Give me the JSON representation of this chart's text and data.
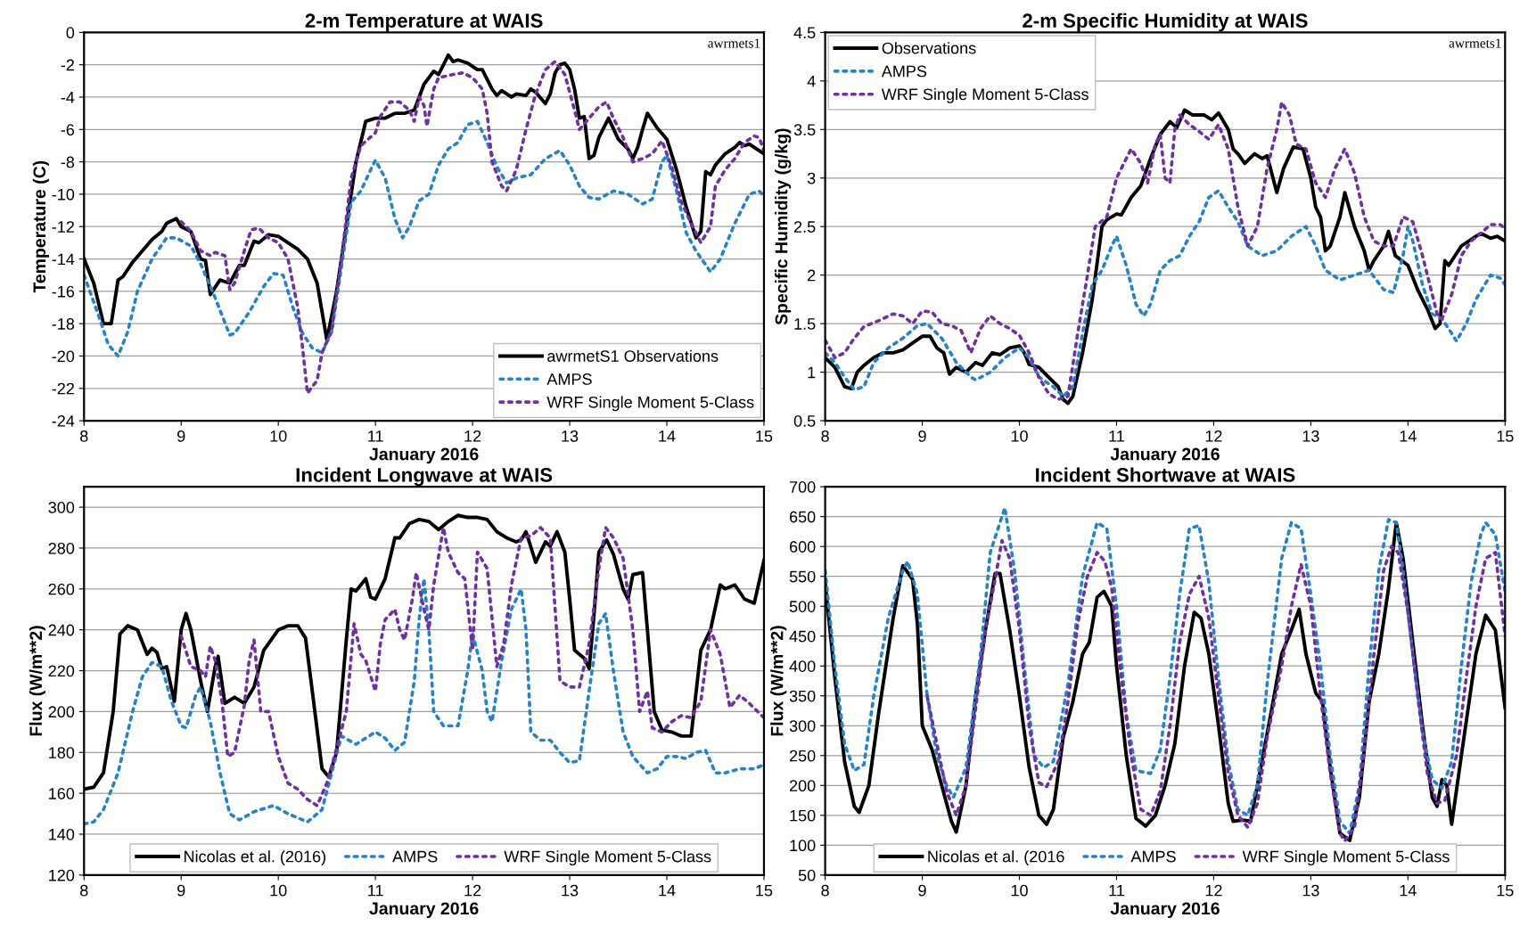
{
  "chart_data": [
    {
      "type": "line",
      "title": "2-m Temperature at WAIS",
      "xlabel": "January 2016",
      "ylabel": "Temperature (C)",
      "annotations": [
        "awrmets1"
      ],
      "xlim": [
        8,
        15
      ],
      "xticks": [
        8,
        9,
        10,
        11,
        12,
        13,
        14,
        15
      ],
      "ylim": [
        -24,
        0
      ],
      "yticks": [
        -24,
        -22,
        -20,
        -18,
        -16,
        -14,
        -12,
        -10,
        -8,
        -6,
        -4,
        -2,
        0
      ],
      "grid": "y",
      "legend": "bottom right",
      "marker": "none",
      "series": [
        {
          "name": "awrmetS1 Observations",
          "color": "#000000",
          "line_style": "solid",
          "x": [
            8.0,
            8.1,
            8.2,
            8.28,
            8.35,
            8.4,
            8.5,
            8.6,
            8.7,
            8.8,
            8.85,
            8.95,
            9.0,
            9.1,
            9.2,
            9.25,
            9.3,
            9.4,
            9.5,
            9.6,
            9.65,
            9.75,
            9.8,
            9.9,
            10.0,
            10.1,
            10.2,
            10.3,
            10.4,
            10.5,
            10.6,
            10.7,
            10.75,
            10.8,
            10.9,
            11.0,
            11.1,
            11.2,
            11.3,
            11.4,
            11.45,
            11.5,
            11.6,
            11.65,
            11.75,
            11.8,
            11.85,
            11.95,
            12.05,
            12.1,
            12.2,
            12.25,
            12.3,
            12.4,
            12.45,
            12.55,
            12.6,
            12.65,
            12.75,
            12.8,
            12.85,
            12.9,
            12.95,
            13.0,
            13.05,
            13.1,
            13.15,
            13.2,
            13.25,
            13.3,
            13.4,
            13.5,
            13.6,
            13.65,
            13.7,
            13.75,
            13.8,
            13.9,
            14.0,
            14.1,
            14.2,
            14.3,
            14.35,
            14.4,
            14.45,
            14.5,
            14.6,
            14.7,
            14.75,
            14.8,
            14.85,
            14.9,
            15.0
          ],
          "values": [
            -14,
            -15.5,
            -18,
            -18,
            -15.3,
            -15.1,
            -14.2,
            -13.5,
            -12.8,
            -12.3,
            -11.8,
            -11.5,
            -12,
            -12.3,
            -14,
            -14.1,
            -16.2,
            -15.3,
            -15.5,
            -14.4,
            -14.4,
            -12.9,
            -13,
            -12.5,
            -12.6,
            -13,
            -13.4,
            -14,
            -15.5,
            -19,
            -16,
            -12,
            -10,
            -8,
            -5.5,
            -5.3,
            -5.3,
            -5.0,
            -5.0,
            -4.8,
            -4,
            -3.2,
            -2.4,
            -2.6,
            -1.4,
            -1.8,
            -1.7,
            -1.9,
            -2.3,
            -2.3,
            -3.5,
            -3.9,
            -3.6,
            -4.0,
            -3.8,
            -3.9,
            -3.5,
            -3.7,
            -4.4,
            -3.8,
            -2.5,
            -2.0,
            -1.9,
            -2.3,
            -3.5,
            -5.3,
            -5.2,
            -7.8,
            -7.6,
            -6.5,
            -5.3,
            -6.6,
            -7.2,
            -7.8,
            -7.1,
            -6.0,
            -5.0,
            -5.9,
            -6.6,
            -8.5,
            -10.8,
            -12.7,
            -12.3,
            -8.6,
            -8.8,
            -8.2,
            -7.5,
            -7.1,
            -6.8,
            -7.0,
            -6.9,
            -7.1,
            -7.5
          ]
        },
        {
          "name": "AMPS",
          "color": "#2683c6",
          "line_style": "dotted",
          "x": [
            8.0,
            8.15,
            8.25,
            8.35,
            8.45,
            8.55,
            8.7,
            8.85,
            8.95,
            9.1,
            9.2,
            9.35,
            9.5,
            9.55,
            9.7,
            9.85,
            9.95,
            10.05,
            10.15,
            10.25,
            10.35,
            10.45,
            10.55,
            10.65,
            10.75,
            10.85,
            10.95,
            11.0,
            11.1,
            11.2,
            11.28,
            11.35,
            11.45,
            11.55,
            11.65,
            11.75,
            11.85,
            11.95,
            12.05,
            12.15,
            12.25,
            12.35,
            12.45,
            12.6,
            12.75,
            12.9,
            13.0,
            13.1,
            13.2,
            13.3,
            13.45,
            13.6,
            13.75,
            13.85,
            13.95,
            14.0,
            14.1,
            14.2,
            14.3,
            14.45,
            14.55,
            14.7,
            14.85,
            14.95,
            15.0
          ],
          "values": [
            -15,
            -17.5,
            -19.3,
            -20,
            -18.5,
            -16,
            -14,
            -12.7,
            -12.7,
            -13.2,
            -14.3,
            -16.4,
            -18.7,
            -18.6,
            -17.3,
            -15.7,
            -14.9,
            -15,
            -17,
            -18.6,
            -19.5,
            -19.8,
            -18.5,
            -14.5,
            -10.5,
            -9.8,
            -8.5,
            -7.9,
            -9.0,
            -11.5,
            -12.7,
            -12.0,
            -10.4,
            -10.0,
            -8.2,
            -7.2,
            -6.8,
            -5.7,
            -5.5,
            -6.8,
            -8.3,
            -9.3,
            -9.0,
            -8.8,
            -7.8,
            -7.3,
            -8.2,
            -9.5,
            -10.2,
            -10.3,
            -9.8,
            -10.0,
            -10.6,
            -10.3,
            -8.0,
            -7.6,
            -9.8,
            -12.4,
            -13.5,
            -14.8,
            -14.0,
            -11.8,
            -10.0,
            -9.8,
            -10.1
          ]
        },
        {
          "name": "WRF Single Moment 5-Class",
          "color": "#7030a0",
          "line_style": "dotted",
          "x": [
            9.0,
            9.1,
            9.2,
            9.3,
            9.35,
            9.45,
            9.5,
            9.55,
            9.65,
            9.72,
            9.8,
            9.9,
            10.0,
            10.1,
            10.2,
            10.25,
            10.3,
            10.4,
            10.45,
            10.55,
            10.65,
            10.75,
            10.85,
            11.0,
            11.05,
            11.15,
            11.25,
            11.35,
            11.4,
            11.45,
            11.5,
            11.53,
            11.6,
            11.65,
            11.8,
            11.9,
            12.0,
            12.1,
            12.15,
            12.2,
            12.3,
            12.35,
            12.45,
            12.55,
            12.65,
            12.75,
            12.85,
            12.95,
            13.05,
            13.1,
            13.2,
            13.3,
            13.38,
            13.45,
            13.55,
            13.65,
            13.75,
            13.85,
            13.95,
            14.05,
            14.15,
            14.25,
            14.35,
            14.45,
            14.5,
            14.6,
            14.7,
            14.8,
            14.9,
            14.95,
            15.0
          ],
          "values": [
            -11.7,
            -12.3,
            -13.5,
            -13.8,
            -13.6,
            -13.8,
            -15.9,
            -15.5,
            -13.5,
            -12.2,
            -12.1,
            -12.7,
            -13.0,
            -14.0,
            -17,
            -19.5,
            -22.3,
            -21.5,
            -19.8,
            -18.4,
            -14,
            -9,
            -7,
            -6.2,
            -5.2,
            -4.3,
            -4.3,
            -4.8,
            -5.5,
            -4.0,
            -4.5,
            -5.8,
            -3.5,
            -2.8,
            -2.6,
            -2.5,
            -2.8,
            -3.5,
            -5.0,
            -8,
            -9.5,
            -9.8,
            -8.5,
            -6.0,
            -3.8,
            -2.3,
            -1.8,
            -2.6,
            -4.8,
            -6.0,
            -5.3,
            -4.6,
            -4.3,
            -5.3,
            -6.5,
            -8.0,
            -7.8,
            -7.5,
            -6.7,
            -8.3,
            -10.5,
            -11.8,
            -13.0,
            -12.0,
            -9.5,
            -8.5,
            -7.8,
            -6.8,
            -6.4,
            -6.5,
            -7.3
          ]
        }
      ]
    },
    {
      "type": "line",
      "title": "2-m Specific Humidity at WAIS",
      "xlabel": "January 2016",
      "ylabel": "Specific Humidity (g/kg)",
      "annotations": [
        "awrmets1"
      ],
      "xlim": [
        8,
        15
      ],
      "xticks": [
        8,
        9,
        10,
        11,
        12,
        13,
        14,
        15
      ],
      "ylim": [
        0.5,
        4.5
      ],
      "yticks": [
        0.5,
        1,
        1.5,
        2,
        2.5,
        3,
        3.5,
        4,
        4.5
      ],
      "grid": "y",
      "legend": "top left",
      "marker": "none",
      "series": [
        {
          "name": "Observations",
          "color": "#000000",
          "line_style": "solid",
          "x": [
            8.0,
            8.1,
            8.2,
            8.27,
            8.33,
            8.4,
            8.5,
            8.6,
            8.7,
            8.8,
            8.9,
            9.0,
            9.08,
            9.15,
            9.22,
            9.28,
            9.35,
            9.45,
            9.55,
            9.62,
            9.72,
            9.8,
            9.9,
            10.0,
            10.05,
            10.1,
            10.2,
            10.3,
            10.4,
            10.45,
            10.5,
            10.55,
            10.65,
            10.75,
            10.85,
            10.9,
            11.0,
            11.05,
            11.15,
            11.25,
            11.35,
            11.45,
            11.55,
            11.62,
            11.7,
            11.78,
            11.9,
            11.98,
            12.05,
            12.15,
            12.2,
            12.25,
            12.32,
            12.42,
            12.5,
            12.55,
            12.65,
            12.72,
            12.82,
            12.92,
            13.0,
            13.05,
            13.1,
            13.15,
            13.2,
            13.3,
            13.35,
            13.45,
            13.55,
            13.6,
            13.65,
            13.75,
            13.8,
            13.87,
            14.0,
            14.1,
            14.2,
            14.28,
            14.33,
            14.38,
            14.42,
            14.55,
            14.7,
            14.75,
            14.85,
            14.92,
            15.0
          ],
          "values": [
            1.15,
            1.05,
            0.85,
            0.83,
            1.0,
            1.07,
            1.15,
            1.2,
            1.2,
            1.23,
            1.3,
            1.37,
            1.37,
            1.25,
            1.2,
            0.98,
            1.05,
            1.0,
            1.1,
            1.07,
            1.2,
            1.18,
            1.25,
            1.27,
            1.2,
            1.08,
            1.05,
            0.95,
            0.85,
            0.72,
            0.68,
            0.75,
            1.2,
            1.75,
            2.5,
            2.57,
            2.63,
            2.62,
            2.8,
            2.92,
            3.2,
            3.45,
            3.58,
            3.52,
            3.7,
            3.65,
            3.65,
            3.6,
            3.67,
            3.5,
            3.3,
            3.25,
            3.15,
            3.25,
            3.2,
            3.23,
            2.85,
            3.1,
            3.32,
            3.3,
            3.0,
            2.7,
            2.6,
            2.25,
            2.3,
            2.6,
            2.85,
            2.5,
            2.25,
            2.05,
            2.15,
            2.3,
            2.45,
            2.2,
            2.1,
            1.85,
            1.65,
            1.45,
            1.5,
            2.15,
            2.1,
            2.3,
            2.4,
            2.43,
            2.38,
            2.4,
            2.35
          ]
        },
        {
          "name": "AMPS",
          "color": "#2683c6",
          "line_style": "dotted",
          "x": [
            8.0,
            8.1,
            8.2,
            8.3,
            8.4,
            8.5,
            8.65,
            8.8,
            8.95,
            9.05,
            9.2,
            9.35,
            9.5,
            9.55,
            9.7,
            9.85,
            10.0,
            10.1,
            10.2,
            10.35,
            10.45,
            10.55,
            10.65,
            10.75,
            10.85,
            10.95,
            11.0,
            11.1,
            11.2,
            11.28,
            11.35,
            11.45,
            11.55,
            11.65,
            11.75,
            11.85,
            11.95,
            12.05,
            12.15,
            12.25,
            12.35,
            12.5,
            12.65,
            12.8,
            12.95,
            13.05,
            13.15,
            13.3,
            13.45,
            13.6,
            13.75,
            13.85,
            13.95,
            14.0,
            14.05,
            14.15,
            14.25,
            14.35,
            14.45,
            14.5,
            14.6,
            14.7,
            14.85,
            14.95,
            15.0
          ],
          "values": [
            1.2,
            1.1,
            0.95,
            0.82,
            0.85,
            1.1,
            1.25,
            1.35,
            1.48,
            1.5,
            1.35,
            1.1,
            0.95,
            0.92,
            1.0,
            1.15,
            1.25,
            1.15,
            0.95,
            0.85,
            0.75,
            0.85,
            1.4,
            1.9,
            2.05,
            2.3,
            2.4,
            2.1,
            1.7,
            1.58,
            1.7,
            2.05,
            2.15,
            2.2,
            2.4,
            2.55,
            2.8,
            2.87,
            2.7,
            2.55,
            2.3,
            2.2,
            2.25,
            2.4,
            2.5,
            2.3,
            2.05,
            1.95,
            2.0,
            2.05,
            1.85,
            1.82,
            2.2,
            2.5,
            2.35,
            1.9,
            1.6,
            1.55,
            1.4,
            1.32,
            1.5,
            1.75,
            2.0,
            1.97,
            1.9
          ]
        },
        {
          "name": "WRF Single Moment 5-Class",
          "color": "#7030a0",
          "line_style": "dotted",
          "x": [
            8.0,
            8.1,
            8.2,
            8.3,
            8.4,
            8.55,
            8.7,
            8.8,
            8.9,
            9.0,
            9.1,
            9.2,
            9.3,
            9.4,
            9.5,
            9.6,
            9.7,
            9.8,
            9.9,
            10.0,
            10.1,
            10.2,
            10.3,
            10.4,
            10.5,
            10.6,
            10.7,
            10.78,
            10.9,
            11.0,
            11.1,
            11.15,
            11.25,
            11.32,
            11.4,
            11.45,
            11.5,
            11.55,
            11.6,
            11.65,
            11.75,
            11.85,
            11.95,
            12.05,
            12.15,
            12.25,
            12.35,
            12.45,
            12.55,
            12.65,
            12.7,
            12.78,
            12.85,
            12.95,
            13.05,
            13.15,
            13.25,
            13.35,
            13.45,
            13.55,
            13.65,
            13.75,
            13.85,
            13.95,
            14.05,
            14.15,
            14.25,
            14.3,
            14.35,
            14.45,
            14.55,
            14.65,
            14.75,
            14.85,
            14.95,
            15.0
          ],
          "values": [
            1.33,
            1.15,
            1.2,
            1.35,
            1.47,
            1.53,
            1.6,
            1.58,
            1.5,
            1.63,
            1.62,
            1.5,
            1.48,
            1.43,
            1.2,
            1.45,
            1.58,
            1.5,
            1.45,
            1.38,
            1.2,
            0.95,
            0.78,
            0.72,
            0.75,
            1.4,
            2.0,
            2.5,
            2.6,
            3.0,
            3.2,
            3.3,
            3.15,
            2.95,
            3.35,
            3.45,
            3.0,
            2.95,
            3.5,
            3.65,
            3.55,
            3.48,
            3.4,
            3.55,
            3.3,
            2.7,
            2.3,
            2.5,
            3.1,
            3.5,
            3.78,
            3.65,
            3.35,
            3.3,
            2.95,
            2.8,
            3.1,
            3.3,
            3.05,
            2.6,
            2.35,
            2.3,
            2.3,
            2.6,
            2.55,
            2.2,
            1.8,
            1.6,
            1.55,
            1.8,
            2.2,
            2.35,
            2.43,
            2.52,
            2.52,
            2.48
          ]
        }
      ]
    },
    {
      "type": "line",
      "title": "Incident Longwave at WAIS",
      "xlabel": "January 2016",
      "ylabel": "Flux (W/m**2)",
      "xlim": [
        8,
        15
      ],
      "xticks": [
        8,
        9,
        10,
        11,
        12,
        13,
        14,
        15
      ],
      "ylim": [
        120,
        310
      ],
      "yticks": [
        120,
        140,
        160,
        180,
        200,
        220,
        240,
        260,
        280,
        300
      ],
      "grid": "y",
      "legend": "bottom",
      "marker": "none",
      "series": [
        {
          "name": "Nicolas et al. (2016)",
          "color": "#000000",
          "line_style": "solid",
          "x": [
            8.0,
            8.1,
            8.2,
            8.3,
            8.37,
            8.45,
            8.55,
            8.65,
            8.7,
            8.75,
            8.8,
            8.85,
            8.93,
            9.0,
            9.05,
            9.1,
            9.2,
            9.27,
            9.35,
            9.38,
            9.45,
            9.55,
            9.65,
            9.75,
            9.85,
            10.0,
            10.1,
            10.2,
            10.28,
            10.35,
            10.45,
            10.52,
            10.6,
            10.7,
            10.75,
            10.8,
            10.9,
            10.95,
            11.0,
            11.1,
            11.2,
            11.25,
            11.35,
            11.45,
            11.55,
            11.65,
            11.75,
            11.85,
            11.95,
            12.05,
            12.15,
            12.25,
            12.35,
            12.45,
            12.5,
            12.55,
            12.65,
            12.75,
            12.8,
            12.87,
            12.95,
            13.0,
            13.05,
            13.15,
            13.2,
            13.25,
            13.3,
            13.38,
            13.45,
            13.55,
            13.6,
            13.65,
            13.75,
            13.8,
            13.87,
            13.95,
            14.05,
            14.15,
            14.25,
            14.35,
            14.45,
            14.55,
            14.6,
            14.7,
            14.8,
            14.9,
            15.0
          ],
          "values": [
            162,
            163,
            170,
            200,
            238,
            242,
            240,
            228,
            231,
            229,
            221,
            222,
            205,
            240,
            248,
            240,
            215,
            200,
            222,
            227,
            204,
            207,
            204,
            212,
            230,
            240,
            242,
            242,
            236,
            210,
            172,
            168,
            180,
            235,
            260,
            259,
            265,
            256,
            255,
            265,
            285,
            285,
            292,
            294,
            293,
            289,
            293,
            296,
            295,
            295,
            294,
            288,
            285,
            283,
            284,
            288,
            273,
            283,
            281,
            288,
            278,
            255,
            230,
            226,
            221,
            247,
            278,
            284,
            277,
            260,
            255,
            267,
            268,
            240,
            200,
            191,
            190,
            188,
            188,
            230,
            240,
            262,
            260,
            262,
            255,
            253,
            274
          ]
        },
        {
          "name": "AMPS",
          "color": "#2683c6",
          "line_style": "dotted",
          "x": [
            8.0,
            8.1,
            8.2,
            8.35,
            8.5,
            8.6,
            8.7,
            8.8,
            8.9,
            9.0,
            9.05,
            9.15,
            9.2,
            9.3,
            9.4,
            9.5,
            9.6,
            9.75,
            9.95,
            10.1,
            10.3,
            10.45,
            10.55,
            10.65,
            10.8,
            11.0,
            11.1,
            11.2,
            11.3,
            11.4,
            11.45,
            11.5,
            11.55,
            11.6,
            11.7,
            11.85,
            11.95,
            12.0,
            12.1,
            12.15,
            12.2,
            12.3,
            12.4,
            12.5,
            12.55,
            12.6,
            12.7,
            12.8,
            12.9,
            13.0,
            13.1,
            13.2,
            13.3,
            13.37,
            13.45,
            13.55,
            13.65,
            13.8,
            13.9,
            14.0,
            14.1,
            14.2,
            14.3,
            14.4,
            14.5,
            14.6,
            14.75,
            14.9,
            15.0
          ],
          "values": [
            145,
            146,
            152,
            170,
            200,
            217,
            224,
            222,
            205,
            193,
            192,
            208,
            212,
            195,
            170,
            150,
            147,
            151,
            154,
            150,
            146,
            152,
            170,
            188,
            184,
            190,
            187,
            181,
            185,
            215,
            245,
            265,
            240,
            200,
            193,
            193,
            220,
            238,
            220,
            200,
            195,
            225,
            250,
            260,
            240,
            190,
            186,
            186,
            180,
            175,
            176,
            210,
            243,
            248,
            220,
            190,
            178,
            170,
            172,
            178,
            178,
            177,
            180,
            181,
            170,
            170,
            172,
            172,
            174
          ]
        },
        {
          "name": "WRF Single Moment 5-Class",
          "color": "#7030a0",
          "line_style": "dotted",
          "x": [
            9.0,
            9.1,
            9.2,
            9.25,
            9.3,
            9.35,
            9.42,
            9.48,
            9.55,
            9.65,
            9.7,
            9.75,
            9.82,
            9.9,
            10.0,
            10.1,
            10.2,
            10.3,
            10.4,
            10.5,
            10.6,
            10.7,
            10.78,
            10.85,
            10.9,
            11.0,
            11.05,
            11.1,
            11.2,
            11.25,
            11.3,
            11.38,
            11.42,
            11.5,
            11.55,
            11.6,
            11.7,
            11.75,
            11.85,
            11.92,
            12.0,
            12.05,
            12.15,
            12.25,
            12.32,
            12.4,
            12.5,
            12.6,
            12.7,
            12.8,
            12.9,
            13.0,
            13.1,
            13.2,
            13.3,
            13.37,
            13.45,
            13.55,
            13.65,
            13.72,
            13.8,
            13.85,
            13.95,
            14.05,
            14.15,
            14.25,
            14.35,
            14.45,
            14.55,
            14.65,
            14.75,
            14.85,
            15.0
          ],
          "values": [
            237,
            222,
            220,
            217,
            232,
            225,
            205,
            178,
            180,
            203,
            225,
            235,
            200,
            200,
            178,
            165,
            162,
            157,
            154,
            165,
            182,
            200,
            243,
            228,
            225,
            210,
            233,
            245,
            250,
            240,
            235,
            255,
            268,
            250,
            240,
            262,
            290,
            278,
            268,
            265,
            230,
            278,
            270,
            222,
            233,
            262,
            285,
            286,
            290,
            285,
            215,
            212,
            212,
            233,
            270,
            290,
            285,
            275,
            240,
            200,
            210,
            192,
            190,
            195,
            198,
            197,
            205,
            240,
            228,
            202,
            208,
            204,
            197
          ]
        }
      ]
    },
    {
      "type": "line",
      "title": "Incident Shortwave at WAIS",
      "xlabel": "January 2016",
      "ylabel": "Flux (W/m**2)",
      "xlim": [
        8,
        15
      ],
      "xticks": [
        8,
        9,
        10,
        11,
        12,
        13,
        14,
        15
      ],
      "ylim": [
        50,
        700
      ],
      "yticks": [
        50,
        100,
        150,
        200,
        250,
        300,
        350,
        400,
        450,
        500,
        550,
        600,
        650,
        700
      ],
      "grid": "y",
      "legend": "bottom",
      "marker": "none",
      "series": [
        {
          "name": "Nicolas et al. (2016",
          "color": "#000000",
          "line_style": "solid",
          "x": [
            8.0,
            8.1,
            8.2,
            8.3,
            8.35,
            8.45,
            8.55,
            8.7,
            8.8,
            8.9,
            8.95,
            9.0,
            9.1,
            9.2,
            9.3,
            9.35,
            9.45,
            9.55,
            9.65,
            9.75,
            9.8,
            9.9,
            10.0,
            10.1,
            10.2,
            10.28,
            10.35,
            10.45,
            10.55,
            10.65,
            10.72,
            10.8,
            10.87,
            10.95,
            11.0,
            11.1,
            11.2,
            11.3,
            11.4,
            11.5,
            11.6,
            11.7,
            11.8,
            11.87,
            11.95,
            12.05,
            12.15,
            12.2,
            12.3,
            12.38,
            12.45,
            12.6,
            12.7,
            12.8,
            12.88,
            12.95,
            13.05,
            13.12,
            13.2,
            13.3,
            13.4,
            13.5,
            13.6,
            13.7,
            13.8,
            13.88,
            13.95,
            14.05,
            14.15,
            14.25,
            14.3,
            14.35,
            14.4,
            14.45,
            14.55,
            14.7,
            14.8,
            14.9,
            15.0
          ],
          "values": [
            540,
            380,
            240,
            165,
            155,
            200,
            320,
            480,
            568,
            545,
            470,
            300,
            260,
            200,
            140,
            122,
            200,
            350,
            460,
            555,
            555,
            460,
            350,
            230,
            150,
            135,
            160,
            280,
            340,
            420,
            440,
            515,
            525,
            500,
            400,
            250,
            145,
            132,
            150,
            200,
            270,
            400,
            490,
            480,
            420,
            300,
            170,
            140,
            142,
            140,
            200,
            330,
            420,
            460,
            495,
            420,
            355,
            340,
            230,
            120,
            108,
            180,
            340,
            420,
            530,
            640,
            580,
            440,
            300,
            180,
            165,
            210,
            200,
            135,
            250,
            420,
            485,
            460,
            330
          ]
        },
        {
          "name": "AMPS",
          "color": "#2683c6",
          "line_style": "dotted",
          "x": [
            8.0,
            8.1,
            8.2,
            8.3,
            8.4,
            8.5,
            8.65,
            8.8,
            8.85,
            8.95,
            9.05,
            9.15,
            9.25,
            9.32,
            9.45,
            9.6,
            9.7,
            9.85,
            9.95,
            10.05,
            10.15,
            10.25,
            10.35,
            10.5,
            10.65,
            10.8,
            10.9,
            11.0,
            11.1,
            11.2,
            11.35,
            11.45,
            11.55,
            11.65,
            11.75,
            11.85,
            11.95,
            12.05,
            12.15,
            12.25,
            12.35,
            12.45,
            12.55,
            12.7,
            12.8,
            12.9,
            13.0,
            13.1,
            13.2,
            13.3,
            13.4,
            13.5,
            13.6,
            13.7,
            13.8,
            13.88,
            13.95,
            14.05,
            14.15,
            14.25,
            14.35,
            14.45,
            14.55,
            14.65,
            14.75,
            14.8,
            14.9,
            15.0
          ],
          "values": [
            560,
            400,
            270,
            225,
            235,
            350,
            480,
            560,
            575,
            520,
            350,
            250,
            200,
            180,
            230,
            420,
            590,
            665,
            560,
            400,
            250,
            230,
            240,
            370,
            550,
            640,
            630,
            500,
            320,
            225,
            220,
            260,
            380,
            520,
            630,
            635,
            540,
            380,
            240,
            160,
            150,
            200,
            370,
            580,
            640,
            630,
            520,
            400,
            250,
            140,
            120,
            200,
            400,
            560,
            645,
            640,
            560,
            420,
            290,
            210,
            195,
            240,
            400,
            540,
            620,
            640,
            620,
            525
          ]
        },
        {
          "name": "WRF Single Moment 5-Class",
          "color": "#7030a0",
          "line_style": "dotted",
          "x": [
            9.05,
            9.15,
            9.25,
            9.35,
            9.45,
            9.55,
            9.65,
            9.75,
            9.82,
            9.9,
            10.0,
            10.1,
            10.2,
            10.28,
            10.4,
            10.5,
            10.6,
            10.7,
            10.8,
            10.88,
            10.95,
            11.05,
            11.15,
            11.25,
            11.35,
            11.45,
            11.55,
            11.65,
            11.75,
            11.85,
            11.95,
            12.05,
            12.15,
            12.25,
            12.35,
            12.45,
            12.55,
            12.7,
            12.8,
            12.9,
            13.0,
            13.1,
            13.2,
            13.3,
            13.35,
            13.45,
            13.55,
            13.65,
            13.75,
            13.83,
            13.9,
            14.0,
            14.1,
            14.2,
            14.3,
            14.38,
            14.5,
            14.6,
            14.7,
            14.8,
            14.9,
            15.0
          ],
          "values": [
            350,
            270,
            190,
            150,
            200,
            330,
            460,
            545,
            610,
            580,
            460,
            300,
            205,
            198,
            240,
            340,
            470,
            550,
            590,
            575,
            530,
            380,
            250,
            160,
            150,
            190,
            300,
            440,
            520,
            550,
            480,
            350,
            220,
            150,
            130,
            170,
            280,
            400,
            500,
            570,
            500,
            350,
            220,
            120,
            107,
            130,
            260,
            420,
            560,
            600,
            590,
            490,
            350,
            220,
            170,
            175,
            250,
            380,
            500,
            580,
            590,
            450
          ]
        }
      ]
    }
  ]
}
